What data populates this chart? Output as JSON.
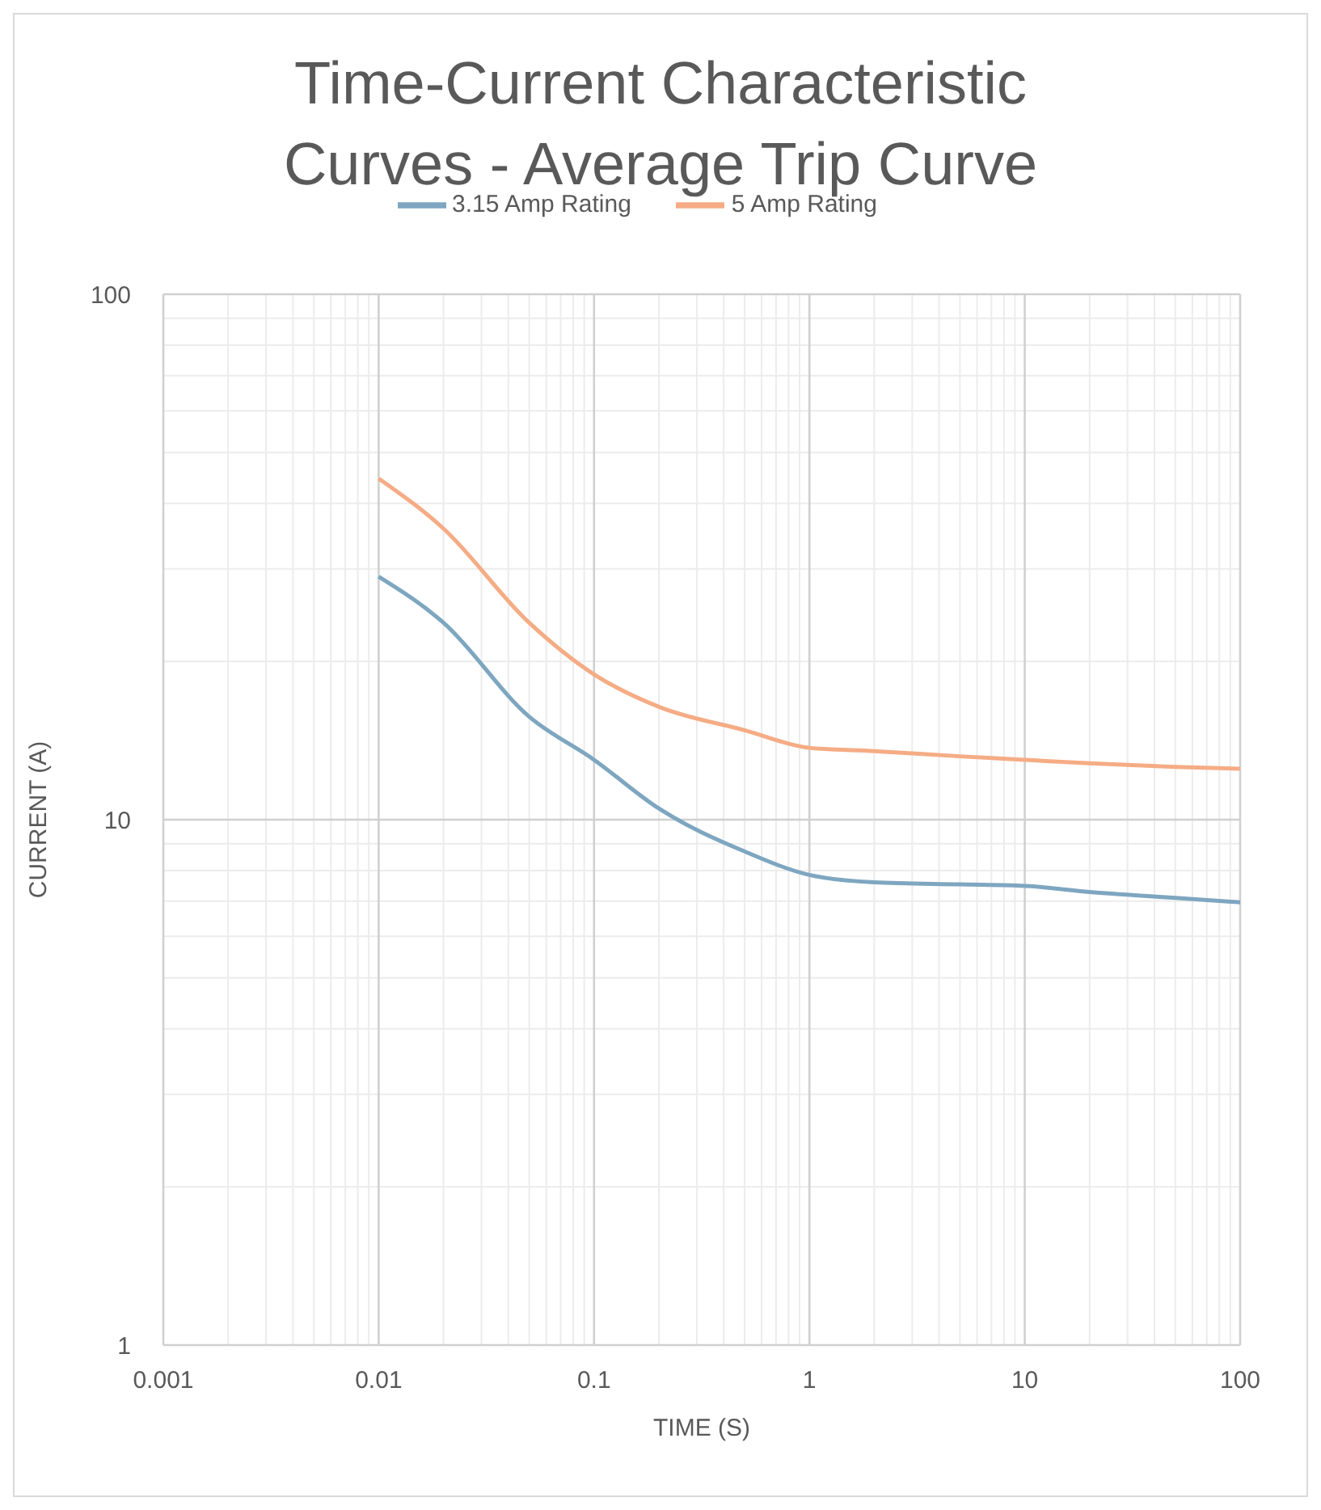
{
  "chart_data": {
    "type": "line",
    "title": "Time-Current Characteristic Curves - Average Trip Curve",
    "xlabel": "TIME (S)",
    "ylabel": "CURRENT (A)",
    "x": [
      0.01,
      0.02,
      0.05,
      0.1,
      0.2,
      0.5,
      1,
      2,
      5,
      10,
      20,
      50,
      100
    ],
    "series": [
      {
        "name": "3.15 Amp Rating",
        "color": "#7ea6c0",
        "values": [
          29.0,
          23.7,
          15.7,
          13.0,
          10.5,
          8.7,
          7.85,
          7.6,
          7.53,
          7.48,
          7.28,
          7.1,
          6.96
        ]
      },
      {
        "name": "5 Amp Rating",
        "color": "#f5ac85",
        "values": [
          44.6,
          35.8,
          23.7,
          18.9,
          16.4,
          14.8,
          13.7,
          13.5,
          13.2,
          13.0,
          12.8,
          12.6,
          12.5
        ]
      }
    ],
    "log": "xy",
    "xlim": [
      0.001,
      100
    ],
    "xticks": [
      0.001,
      0.01,
      0.1,
      1,
      10,
      100
    ],
    "ylim": [
      1,
      100
    ],
    "yticks": [
      1,
      10,
      100
    ],
    "grid": true,
    "legend": "top",
    "marker": "none",
    "line_style": "solid"
  }
}
